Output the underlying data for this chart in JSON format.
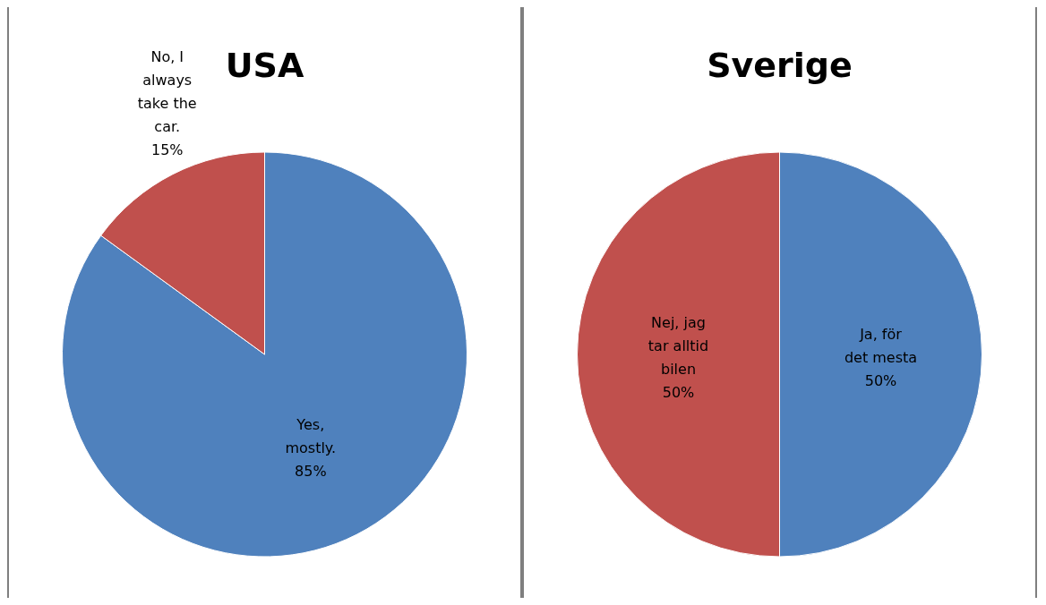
{
  "chart_data": [
    {
      "type": "pie",
      "title": "USA",
      "categories": [
        "Yes, mostly.",
        "No, I always take the car."
      ],
      "values": [
        85,
        15
      ],
      "colors": [
        "#4f81bd",
        "#c0504d"
      ],
      "value_labels": [
        "85%",
        "15%"
      ]
    },
    {
      "type": "pie",
      "title": "Sverige",
      "categories": [
        "Ja, för det mesta",
        "Nej, jag tar alltid bilen"
      ],
      "values": [
        50,
        50
      ],
      "colors": [
        "#4f81bd",
        "#c0504d"
      ],
      "value_labels": [
        "50%",
        "50%"
      ]
    }
  ]
}
